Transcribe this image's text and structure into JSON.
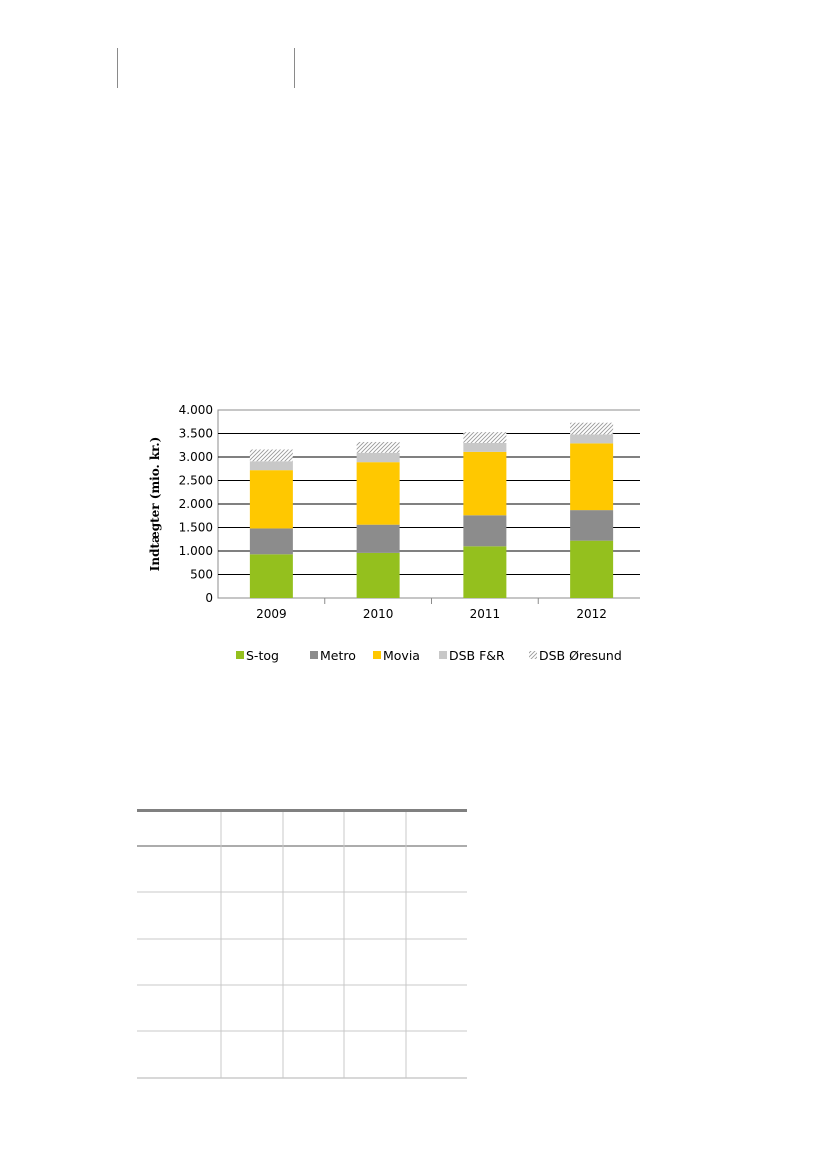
{
  "chart_data": {
    "type": "bar",
    "stacked": true,
    "title": "",
    "xlabel": "",
    "ylabel": "Indtægter (mio. kr.)",
    "categories": [
      "2009",
      "2010",
      "2011",
      "2012"
    ],
    "ylim": [
      0,
      4000
    ],
    "yticks": [
      0,
      500,
      1000,
      1500,
      2000,
      2500,
      3000,
      3500,
      4000
    ],
    "ytick_labels": [
      "0",
      "500",
      "1.000",
      "1.500",
      "2.000",
      "2.500",
      "3.000",
      "3.500",
      "4.000"
    ],
    "grid": true,
    "legend_position": "bottom",
    "series": [
      {
        "name": "S-tog",
        "values": [
          930,
          960,
          1100,
          1220
        ],
        "color": "#94c01e",
        "pattern": "solid"
      },
      {
        "name": "Metro",
        "values": [
          550,
          600,
          660,
          650
        ],
        "color": "#8c8c8c",
        "pattern": "solid"
      },
      {
        "name": "Movia",
        "values": [
          1240,
          1330,
          1350,
          1420
        ],
        "color": "#ffc800",
        "pattern": "solid"
      },
      {
        "name": "DSB F&R",
        "values": [
          190,
          200,
          190,
          190
        ],
        "color": "#c8c8c8",
        "pattern": "solid"
      },
      {
        "name": "DSB Øresund",
        "values": [
          250,
          230,
          230,
          250
        ],
        "color": "#c8c8c8",
        "pattern": "hatch"
      }
    ]
  }
}
